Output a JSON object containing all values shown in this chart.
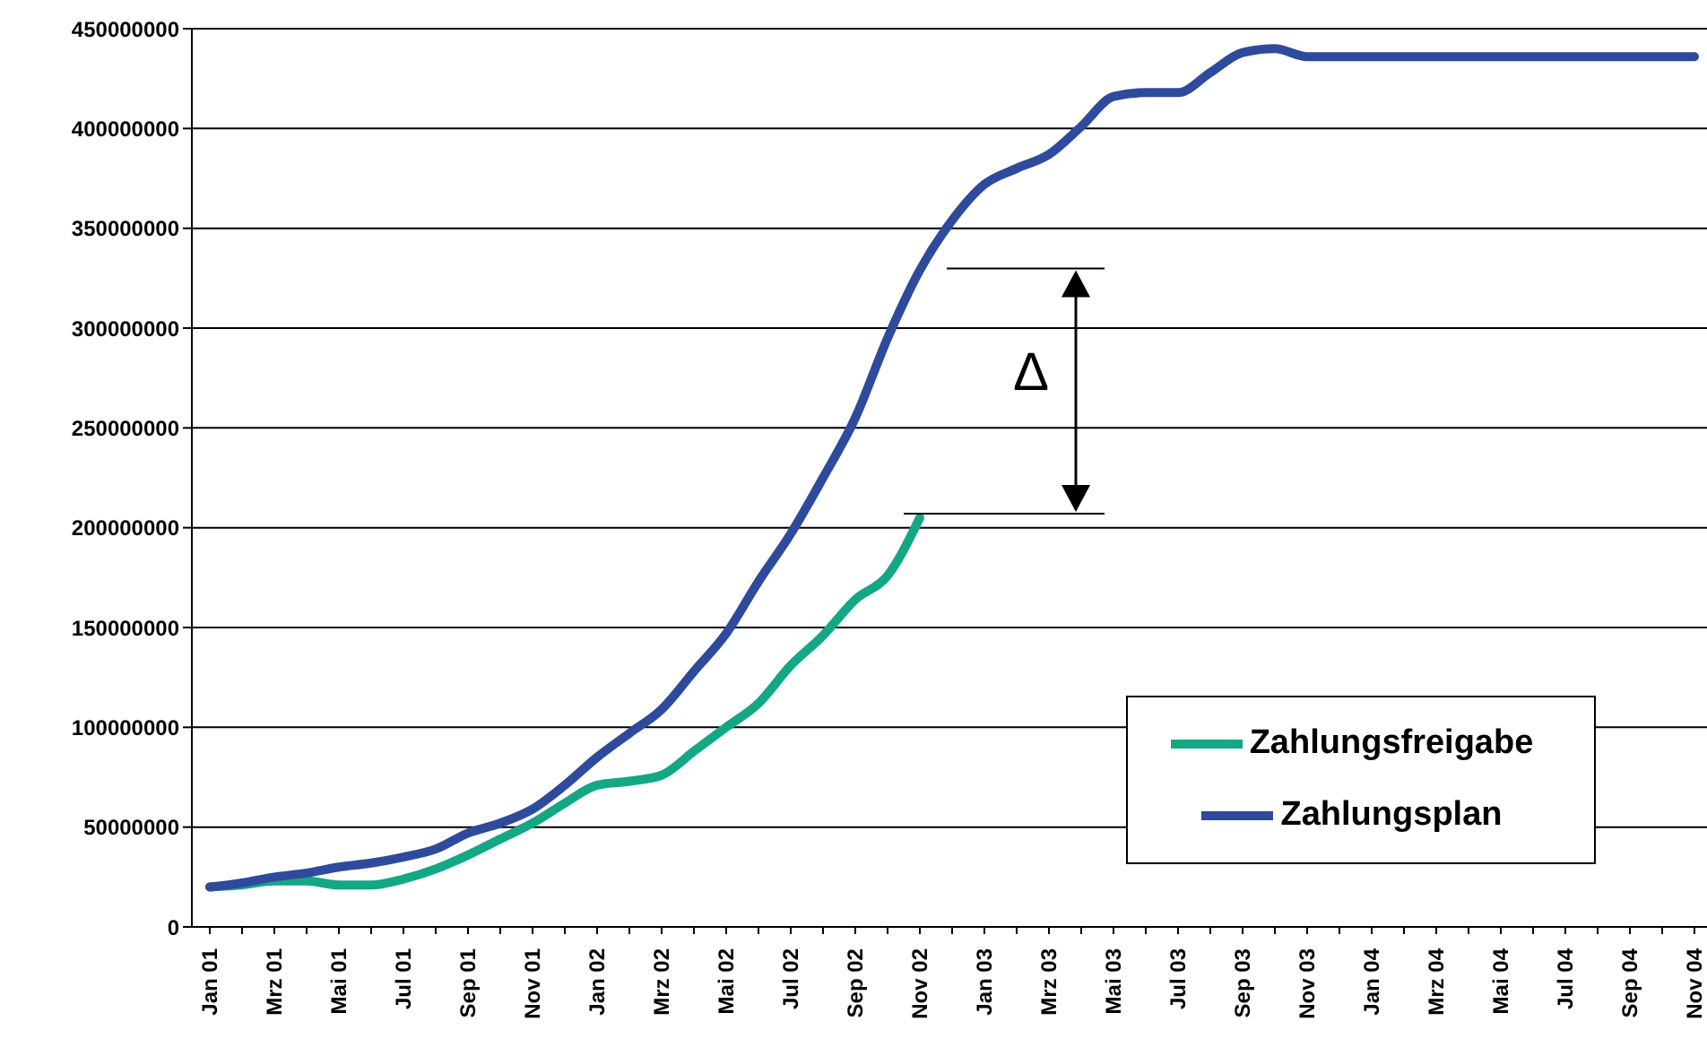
{
  "chart_data": {
    "type": "line",
    "categories": [
      "Jan 01",
      null,
      "Mrz 01",
      null,
      "Mai 01",
      null,
      "Jul 01",
      null,
      "Sep 01",
      null,
      "Nov 01",
      null,
      "Jan 02",
      null,
      "Mrz 02",
      null,
      "Mai 02",
      null,
      "Jul 02",
      null,
      "Sep 02",
      null,
      "Nov 02",
      null,
      "Jan 03",
      null,
      "Mrz 03",
      null,
      "Mai 03",
      null,
      "Jul 03",
      null,
      "Sep 03",
      null,
      "Nov 03",
      null,
      "Jan 04",
      null,
      "Mrz 04",
      null,
      "Mai 04",
      null,
      "Jul 04",
      null,
      "Sep 04",
      null,
      "Nov 04"
    ],
    "series": [
      {
        "name": "Zahlungsfreigabe",
        "color": "#13a883",
        "values": [
          20000000,
          21000000,
          23000000,
          23000000,
          21000000,
          21000000,
          24000000,
          29000000,
          36000000,
          44000000,
          52000000,
          62000000,
          71000000,
          73000000,
          76000000,
          88000000,
          100000000,
          112000000,
          131000000,
          146000000,
          164000000,
          176000000,
          205000000,
          null,
          null,
          null,
          null,
          null,
          null,
          null,
          null,
          null,
          null,
          null,
          null,
          null,
          null,
          null,
          null,
          null,
          null,
          null,
          null,
          null,
          null,
          null,
          null
        ]
      },
      {
        "name": "Zahlungsplan",
        "color": "#2e4a9c",
        "values": [
          20000000,
          22000000,
          25000000,
          27000000,
          30000000,
          32000000,
          35000000,
          39000000,
          47000000,
          52000000,
          59000000,
          71000000,
          85000000,
          97000000,
          109000000,
          128000000,
          147000000,
          173000000,
          197000000,
          225000000,
          255000000,
          295000000,
          329000000,
          354000000,
          372000000,
          380000000,
          387000000,
          401000000,
          416000000,
          418000000,
          418000000,
          428000000,
          438000000,
          440000000,
          436000000,
          436000000,
          436000000,
          436000000,
          436000000,
          436000000,
          436000000,
          436000000,
          436000000,
          436000000,
          436000000,
          436000000,
          436000000
        ]
      }
    ],
    "ylim": [
      0,
      450000000
    ],
    "yticks": [
      0,
      50000000,
      100000000,
      150000000,
      200000000,
      250000000,
      300000000,
      350000000,
      400000000,
      450000000
    ],
    "grid": "y",
    "legend": "bottom right",
    "marker": "none",
    "line_style": "solid",
    "annotations": [
      "Δ"
    ]
  }
}
